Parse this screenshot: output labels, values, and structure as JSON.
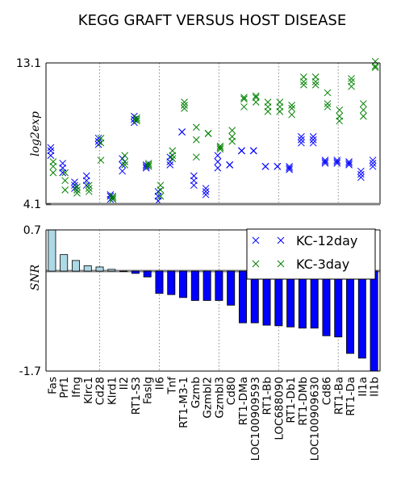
{
  "chart_data": {
    "title": "KEGG GRAFT VERSUS HOST DISEASE",
    "genes": [
      "Fas",
      "Prf1",
      "Ifng",
      "Klrc1",
      "Cd28",
      "Klrd1",
      "Il2",
      "RT1-S3",
      "Faslg",
      "Il6",
      "Tnf",
      "RT1-M3-1",
      "Gzmb",
      "Gzmbl2",
      "Gzmbl3",
      "Cd80",
      "RT1-DMa",
      "LOC100909593",
      "RT1-Bb",
      "LOC688090",
      "RT1-Db1",
      "RT1-DMb",
      "LOC100909630",
      "Cd86",
      "RT1-Ba",
      "RT1-Da",
      "Il1a",
      "Il1b"
    ],
    "top": {
      "type": "scatter",
      "ylabel": "log2exp",
      "ylim": [
        4.1,
        13.1
      ],
      "yticks": [
        "13.1",
        "4.1"
      ],
      "series": [
        {
          "name": "KC-12day",
          "color": "#0000ff",
          "values": [
            [
              7.2,
              7.5,
              7.7
            ],
            [
              6.1,
              6.4,
              6.7
            ],
            [
              5.1,
              5.3,
              5.5
            ],
            [
              5.3,
              5.6,
              5.9
            ],
            [
              7.9,
              8.1,
              8.3
            ],
            [
              4.4,
              4.6,
              4.7
            ],
            [
              6.2,
              6.6,
              7.0
            ],
            [
              9.3,
              9.5,
              9.7
            ],
            [
              6.4,
              6.5,
              6.6
            ],
            [
              4.3,
              4.6,
              4.9
            ],
            [
              6.6,
              6.8,
              7.1
            ],
            [
              8.7,
              8.7,
              8.7
            ],
            [
              5.3,
              5.6,
              5.9
            ],
            [
              4.7,
              4.9,
              5.1
            ],
            [
              6.4,
              6.8,
              7.2
            ],
            [
              6.6,
              6.6,
              6.6
            ],
            [
              7.5,
              7.5,
              7.5
            ],
            [
              7.5,
              7.5,
              7.5
            ],
            [
              6.5,
              6.5,
              6.5
            ],
            [
              6.5,
              6.5,
              6.5
            ],
            [
              6.3,
              6.4,
              6.5
            ],
            [
              8.0,
              8.2,
              8.4
            ],
            [
              8.0,
              8.2,
              8.4
            ],
            [
              6.7,
              6.8,
              6.9
            ],
            [
              6.7,
              6.8,
              6.9
            ],
            [
              6.6,
              6.7,
              6.8
            ],
            [
              5.8,
              6.0,
              6.2
            ],
            [
              6.5,
              6.7,
              6.9
            ]
          ]
        },
        {
          "name": "KC-3day",
          "color": "#008000",
          "values": [
            [
              6.1,
              6.5,
              6.8
            ],
            [
              5.0,
              5.6,
              6.1
            ],
            [
              4.8,
              5.0,
              5.2
            ],
            [
              4.9,
              5.1,
              5.3
            ],
            [
              6.9,
              8.0,
              8.3
            ],
            [
              4.4,
              4.5,
              4.6
            ],
            [
              6.6,
              6.8,
              7.2
            ],
            [
              9.4,
              9.5,
              9.6
            ],
            [
              6.5,
              6.6,
              6.7
            ],
            [
              4.6,
              5.0,
              5.3
            ],
            [
              7.0,
              7.2,
              7.5
            ],
            [
              10.2,
              10.4,
              10.6
            ],
            [
              7.1,
              8.2,
              9.0
            ],
            [
              8.6,
              8.6,
              8.6
            ],
            [
              7.6,
              7.7,
              7.8
            ],
            [
              8.1,
              8.4,
              8.8
            ],
            [
              10.3,
              10.8,
              10.9
            ],
            [
              10.6,
              10.9,
              11.0
            ],
            [
              10.0,
              10.3,
              10.6
            ],
            [
              10.0,
              10.3,
              10.6
            ],
            [
              9.8,
              10.2,
              10.4
            ],
            [
              11.7,
              11.9,
              12.2
            ],
            [
              11.7,
              11.9,
              12.2
            ],
            [
              10.3,
              10.5,
              11.2
            ],
            [
              9.4,
              9.7,
              10.1
            ],
            [
              11.6,
              11.9,
              12.1
            ],
            [
              9.7,
              10.1,
              10.5
            ],
            [
              12.8,
              12.9,
              13.2
            ]
          ]
        }
      ]
    },
    "bottom": {
      "type": "bar",
      "ylabel": "SNR",
      "ylim": [
        -1.7,
        0.7
      ],
      "yticks": [
        "0.7",
        "-1.7"
      ],
      "values": [
        0.7,
        0.28,
        0.18,
        0.09,
        0.07,
        0.03,
        0.0,
        -0.04,
        -0.1,
        -0.38,
        -0.4,
        -0.45,
        -0.5,
        -0.5,
        -0.5,
        -0.58,
        -0.88,
        -0.88,
        -0.92,
        -0.93,
        -0.95,
        -0.97,
        -0.97,
        -1.1,
        -1.12,
        -1.4,
        -1.48,
        -1.7
      ],
      "pos_color": "#add8e6",
      "neg_color": "#0000ff",
      "vlines_after": [
        4,
        9,
        14,
        19,
        24
      ]
    },
    "legend": {
      "entries": [
        "KC-12day",
        "KC-3day"
      ],
      "location": "upper-right"
    }
  }
}
